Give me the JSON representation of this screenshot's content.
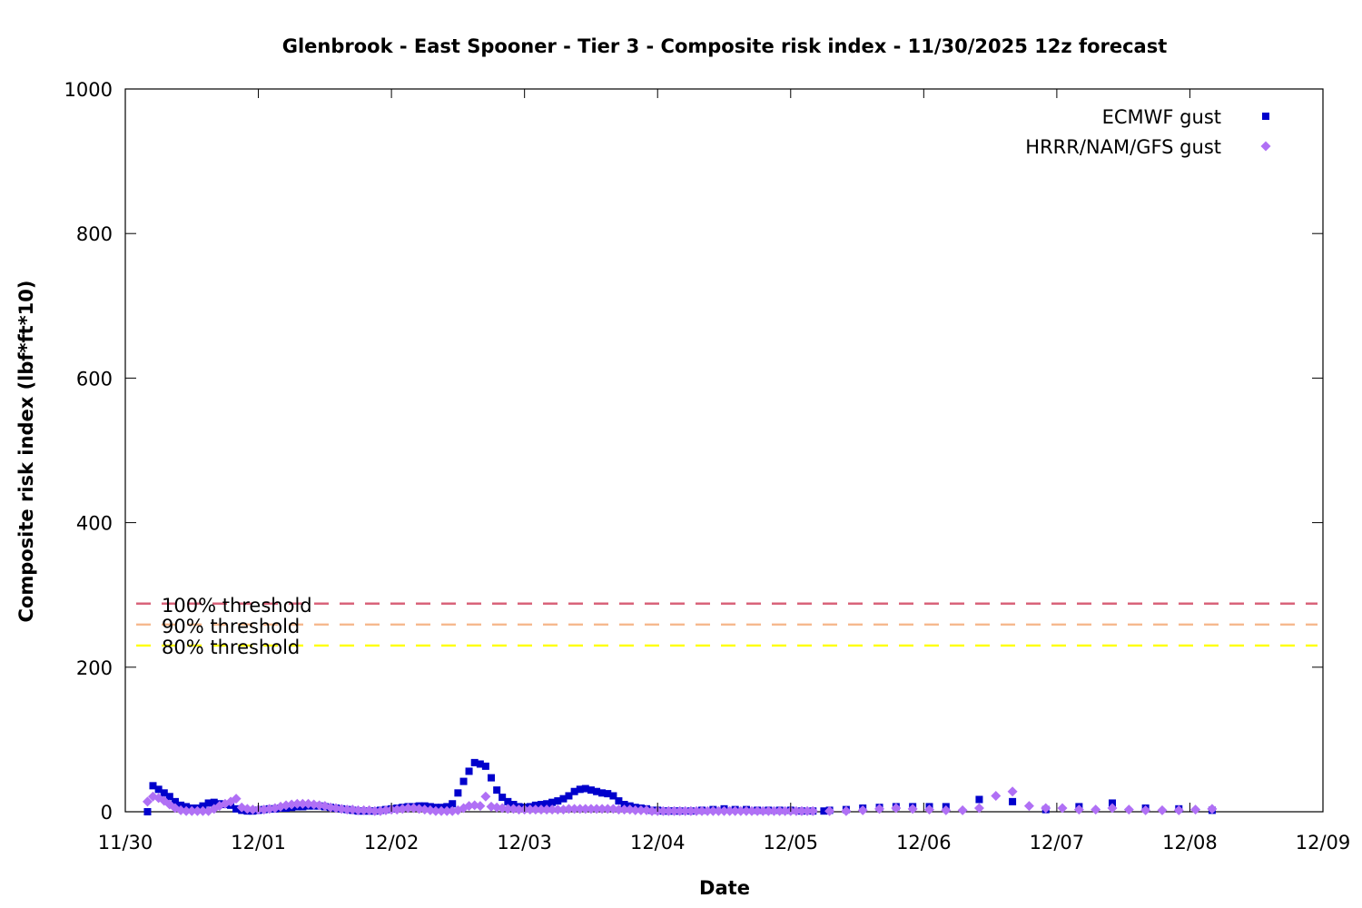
{
  "chart_data": {
    "type": "scatter",
    "title": "Glenbrook - East Spooner - Tier 3 - Composite risk index - 11/30/2025 12z forecast",
    "xlabel": "Date",
    "ylabel": "Composite risk index (lbf*ft*10)",
    "x_range_days": [
      0,
      9
    ],
    "ylim": [
      0,
      1000
    ],
    "x_ticks": [
      {
        "day": 0,
        "label": "11/30"
      },
      {
        "day": 1,
        "label": "12/01"
      },
      {
        "day": 2,
        "label": "12/02"
      },
      {
        "day": 3,
        "label": "12/03"
      },
      {
        "day": 4,
        "label": "12/04"
      },
      {
        "day": 5,
        "label": "12/05"
      },
      {
        "day": 6,
        "label": "12/06"
      },
      {
        "day": 7,
        "label": "12/07"
      },
      {
        "day": 8,
        "label": "12/08"
      },
      {
        "day": 9,
        "label": "12/09"
      }
    ],
    "y_ticks": [
      0,
      200,
      400,
      600,
      800,
      1000
    ],
    "grid": false,
    "legend_position": "top-right",
    "thresholds": [
      {
        "label": "100% threshold",
        "value": 288,
        "color": "#d9637a"
      },
      {
        "label": "90% threshold",
        "value": 259,
        "color": "#f6b98e"
      },
      {
        "label": "80% threshold",
        "value": 230,
        "color": "#ffff00"
      }
    ],
    "series": [
      {
        "name": "ECMWF gust",
        "marker": "square",
        "color": "#0000cc",
        "points": [
          [
            0.167,
            0
          ],
          [
            0.208,
            36
          ],
          [
            0.25,
            31
          ],
          [
            0.292,
            26
          ],
          [
            0.333,
            21
          ],
          [
            0.375,
            14
          ],
          [
            0.417,
            9
          ],
          [
            0.458,
            7
          ],
          [
            0.5,
            5
          ],
          [
            0.542,
            5
          ],
          [
            0.583,
            8
          ],
          [
            0.625,
            12
          ],
          [
            0.667,
            13
          ],
          [
            0.708,
            11
          ],
          [
            0.75,
            10
          ],
          [
            0.792,
            9
          ],
          [
            0.833,
            4
          ],
          [
            0.875,
            2
          ],
          [
            0.917,
            1
          ],
          [
            0.958,
            1
          ],
          [
            1.0,
            2
          ],
          [
            1.042,
            3
          ],
          [
            1.083,
            4
          ],
          [
            1.125,
            4
          ],
          [
            1.167,
            5
          ],
          [
            1.208,
            5
          ],
          [
            1.25,
            6
          ],
          [
            1.292,
            7
          ],
          [
            1.333,
            7
          ],
          [
            1.375,
            8
          ],
          [
            1.417,
            8
          ],
          [
            1.458,
            8
          ],
          [
            1.5,
            7
          ],
          [
            1.542,
            6
          ],
          [
            1.583,
            5
          ],
          [
            1.625,
            4
          ],
          [
            1.667,
            3
          ],
          [
            1.708,
            2
          ],
          [
            1.75,
            1
          ],
          [
            1.792,
            1
          ],
          [
            1.833,
            1
          ],
          [
            1.875,
            1
          ],
          [
            1.917,
            2
          ],
          [
            1.958,
            3
          ],
          [
            2.0,
            4
          ],
          [
            2.042,
            5
          ],
          [
            2.083,
            6
          ],
          [
            2.125,
            7
          ],
          [
            2.167,
            7
          ],
          [
            2.208,
            8
          ],
          [
            2.25,
            8
          ],
          [
            2.292,
            7
          ],
          [
            2.333,
            6
          ],
          [
            2.375,
            6
          ],
          [
            2.417,
            7
          ],
          [
            2.458,
            11
          ],
          [
            2.5,
            26
          ],
          [
            2.542,
            42
          ],
          [
            2.583,
            56
          ],
          [
            2.625,
            68
          ],
          [
            2.667,
            66
          ],
          [
            2.708,
            63
          ],
          [
            2.75,
            47
          ],
          [
            2.792,
            30
          ],
          [
            2.833,
            20
          ],
          [
            2.875,
            14
          ],
          [
            2.917,
            10
          ],
          [
            2.958,
            7
          ],
          [
            3.0,
            6
          ],
          [
            3.042,
            7
          ],
          [
            3.083,
            9
          ],
          [
            3.125,
            10
          ],
          [
            3.167,
            11
          ],
          [
            3.208,
            13
          ],
          [
            3.25,
            15
          ],
          [
            3.292,
            18
          ],
          [
            3.333,
            22
          ],
          [
            3.375,
            28
          ],
          [
            3.417,
            31
          ],
          [
            3.458,
            32
          ],
          [
            3.5,
            30
          ],
          [
            3.542,
            28
          ],
          [
            3.583,
            26
          ],
          [
            3.625,
            25
          ],
          [
            3.667,
            22
          ],
          [
            3.708,
            15
          ],
          [
            3.75,
            10
          ],
          [
            3.792,
            8
          ],
          [
            3.833,
            6
          ],
          [
            3.875,
            5
          ],
          [
            3.917,
            4
          ],
          [
            3.958,
            2
          ],
          [
            4.0,
            2
          ],
          [
            4.042,
            1
          ],
          [
            4.083,
            1
          ],
          [
            4.125,
            1
          ],
          [
            4.167,
            1
          ],
          [
            4.25,
            1
          ],
          [
            4.333,
            2
          ],
          [
            4.417,
            3
          ],
          [
            4.5,
            4
          ],
          [
            4.583,
            3
          ],
          [
            4.667,
            3
          ],
          [
            4.75,
            2
          ],
          [
            4.833,
            2
          ],
          [
            4.917,
            2
          ],
          [
            5.0,
            2
          ],
          [
            5.083,
            1
          ],
          [
            5.167,
            1
          ],
          [
            5.25,
            1
          ],
          [
            5.292,
            2
          ],
          [
            5.417,
            3
          ],
          [
            5.542,
            5
          ],
          [
            5.667,
            6
          ],
          [
            5.792,
            7
          ],
          [
            5.917,
            7
          ],
          [
            6.042,
            7
          ],
          [
            6.167,
            7
          ],
          [
            6.417,
            17
          ],
          [
            6.667,
            14
          ],
          [
            6.917,
            3
          ],
          [
            7.167,
            7
          ],
          [
            7.417,
            12
          ],
          [
            7.667,
            5
          ],
          [
            7.917,
            4
          ],
          [
            8.167,
            2
          ]
        ]
      },
      {
        "name": "HRRR/NAM/GFS gust",
        "marker": "diamond",
        "color": "#b070f5",
        "points": [
          [
            0.167,
            14
          ],
          [
            0.208,
            21
          ],
          [
            0.25,
            19
          ],
          [
            0.292,
            15
          ],
          [
            0.333,
            10
          ],
          [
            0.375,
            5
          ],
          [
            0.417,
            2
          ],
          [
            0.458,
            1
          ],
          [
            0.5,
            1
          ],
          [
            0.542,
            1
          ],
          [
            0.583,
            1
          ],
          [
            0.625,
            1
          ],
          [
            0.667,
            4
          ],
          [
            0.708,
            8
          ],
          [
            0.75,
            11
          ],
          [
            0.792,
            14
          ],
          [
            0.833,
            18
          ],
          [
            0.875,
            6
          ],
          [
            0.917,
            4
          ],
          [
            0.958,
            3
          ],
          [
            1.0,
            3
          ],
          [
            1.042,
            3
          ],
          [
            1.083,
            4
          ],
          [
            1.125,
            5
          ],
          [
            1.167,
            7
          ],
          [
            1.208,
            9
          ],
          [
            1.25,
            10
          ],
          [
            1.292,
            11
          ],
          [
            1.333,
            11
          ],
          [
            1.375,
            11
          ],
          [
            1.417,
            10
          ],
          [
            1.458,
            9
          ],
          [
            1.5,
            8
          ],
          [
            1.542,
            6
          ],
          [
            1.583,
            5
          ],
          [
            1.625,
            4
          ],
          [
            1.667,
            3
          ],
          [
            1.708,
            3
          ],
          [
            1.75,
            2
          ],
          [
            1.792,
            2
          ],
          [
            1.833,
            2
          ],
          [
            1.875,
            1
          ],
          [
            1.917,
            1
          ],
          [
            1.958,
            2
          ],
          [
            2.0,
            3
          ],
          [
            2.042,
            3
          ],
          [
            2.083,
            4
          ],
          [
            2.125,
            5
          ],
          [
            2.167,
            5
          ],
          [
            2.208,
            4
          ],
          [
            2.25,
            3
          ],
          [
            2.292,
            2
          ],
          [
            2.333,
            1
          ],
          [
            2.375,
            1
          ],
          [
            2.417,
            1
          ],
          [
            2.458,
            1
          ],
          [
            2.5,
            2
          ],
          [
            2.542,
            5
          ],
          [
            2.583,
            8
          ],
          [
            2.625,
            9
          ],
          [
            2.667,
            8
          ],
          [
            2.708,
            21
          ],
          [
            2.75,
            7
          ],
          [
            2.792,
            6
          ],
          [
            2.833,
            5
          ],
          [
            2.875,
            4
          ],
          [
            2.917,
            4
          ],
          [
            2.958,
            3
          ],
          [
            3.0,
            3
          ],
          [
            3.042,
            3
          ],
          [
            3.083,
            3
          ],
          [
            3.125,
            3
          ],
          [
            3.167,
            3
          ],
          [
            3.208,
            3
          ],
          [
            3.25,
            3
          ],
          [
            3.292,
            3
          ],
          [
            3.333,
            4
          ],
          [
            3.375,
            4
          ],
          [
            3.417,
            4
          ],
          [
            3.458,
            4
          ],
          [
            3.5,
            4
          ],
          [
            3.542,
            4
          ],
          [
            3.583,
            4
          ],
          [
            3.625,
            4
          ],
          [
            3.667,
            4
          ],
          [
            3.708,
            3
          ],
          [
            3.75,
            3
          ],
          [
            3.792,
            3
          ],
          [
            3.833,
            2
          ],
          [
            3.875,
            2
          ],
          [
            3.917,
            2
          ],
          [
            3.958,
            1
          ],
          [
            4.0,
            1
          ],
          [
            4.042,
            1
          ],
          [
            4.083,
            1
          ],
          [
            4.125,
            1
          ],
          [
            4.167,
            1
          ],
          [
            4.208,
            1
          ],
          [
            4.25,
            1
          ],
          [
            4.292,
            1
          ],
          [
            4.333,
            1
          ],
          [
            4.375,
            1
          ],
          [
            4.417,
            1
          ],
          [
            4.458,
            1
          ],
          [
            4.5,
            1
          ],
          [
            4.542,
            1
          ],
          [
            4.583,
            1
          ],
          [
            4.625,
            1
          ],
          [
            4.667,
            1
          ],
          [
            4.708,
            1
          ],
          [
            4.75,
            1
          ],
          [
            4.792,
            1
          ],
          [
            4.833,
            1
          ],
          [
            4.875,
            1
          ],
          [
            4.917,
            1
          ],
          [
            4.958,
            1
          ],
          [
            5.0,
            1
          ],
          [
            5.042,
            1
          ],
          [
            5.083,
            1
          ],
          [
            5.125,
            1
          ],
          [
            5.167,
            1
          ],
          [
            5.292,
            1
          ],
          [
            5.417,
            1
          ],
          [
            5.542,
            2
          ],
          [
            5.667,
            4
          ],
          [
            5.792,
            5
          ],
          [
            5.917,
            4
          ],
          [
            6.042,
            3
          ],
          [
            6.167,
            2
          ],
          [
            6.292,
            2
          ],
          [
            6.417,
            5
          ],
          [
            6.542,
            22
          ],
          [
            6.667,
            28
          ],
          [
            6.792,
            8
          ],
          [
            6.917,
            5
          ],
          [
            7.042,
            5
          ],
          [
            7.167,
            3
          ],
          [
            7.292,
            3
          ],
          [
            7.417,
            5
          ],
          [
            7.542,
            3
          ],
          [
            7.667,
            2
          ],
          [
            7.792,
            2
          ],
          [
            7.917,
            2
          ],
          [
            8.042,
            3
          ],
          [
            8.167,
            4
          ]
        ]
      }
    ]
  }
}
